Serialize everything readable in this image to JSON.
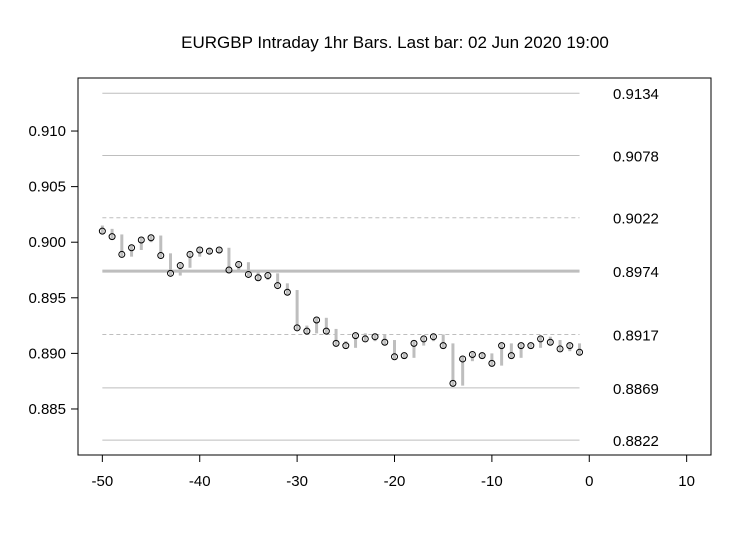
{
  "chart_data": {
    "type": "ohlc-line",
    "title": "EURGBP Intraday 1hr Bars. Last bar: 02 Jun 2020 19:00",
    "xlabel": "",
    "ylabel": "",
    "xlim": [
      -52.5,
      12.5
    ],
    "ylim": [
      0.88086,
      0.91477
    ],
    "xticks": [
      -50,
      -40,
      -30,
      -20,
      -10,
      0,
      10
    ],
    "xtick_labels": [
      "-50",
      "-40",
      "-30",
      "-20",
      "-10",
      "0",
      "10"
    ],
    "yticks": [
      0.885,
      0.89,
      0.895,
      0.9,
      0.905,
      0.91
    ],
    "ytick_labels": [
      "0.885",
      "0.890",
      "0.895",
      "0.900",
      "0.905",
      "0.910"
    ],
    "x": [
      -50,
      -49,
      -48,
      -47,
      -46,
      -45,
      -44,
      -43,
      -42,
      -41,
      -40,
      -39,
      -38,
      -37,
      -36,
      -35,
      -34,
      -33,
      -32,
      -31,
      -30,
      -29,
      -28,
      -27,
      -26,
      -25,
      -24,
      -23,
      -22,
      -21,
      -20,
      -19,
      -18,
      -17,
      -16,
      -15,
      -14,
      -13,
      -12,
      -11,
      -10,
      -9,
      -8,
      -7,
      -6,
      -5,
      -4,
      -3,
      -2,
      -1
    ],
    "close": [
      0.901,
      0.9005,
      0.8989,
      0.8995,
      0.9002,
      0.9004,
      0.8988,
      0.8972,
      0.8979,
      0.8989,
      0.8993,
      0.8992,
      0.8993,
      0.8975,
      0.898,
      0.8971,
      0.8968,
      0.897,
      0.8961,
      0.8955,
      0.8923,
      0.892,
      0.893,
      0.892,
      0.8909,
      0.8907,
      0.8916,
      0.8913,
      0.8915,
      0.891,
      0.8897,
      0.8898,
      0.8909,
      0.8913,
      0.8915,
      0.8907,
      0.8873,
      0.8895,
      0.8899,
      0.8898,
      0.8891,
      0.8907,
      0.8898,
      0.8907,
      0.8907,
      0.8913,
      0.891,
      0.8904,
      0.8907,
      0.8901
    ],
    "levels": [
      {
        "value": 0.9134,
        "label": "0.9134",
        "style": "solid"
      },
      {
        "value": 0.9078,
        "label": "0.9078",
        "style": "solid"
      },
      {
        "value": 0.9022,
        "label": "0.9022",
        "style": "dashed"
      },
      {
        "value": 0.8974,
        "label": "0.8974",
        "style": "thick"
      },
      {
        "value": 0.8917,
        "label": "0.8917",
        "style": "dashed"
      },
      {
        "value": 0.8869,
        "label": "0.8869",
        "style": "solid"
      },
      {
        "value": 0.8822,
        "label": "0.8822",
        "style": "solid"
      }
    ],
    "colors": {
      "bar": "#bebebe",
      "level": "#bebebe",
      "point": "#000000"
    }
  }
}
